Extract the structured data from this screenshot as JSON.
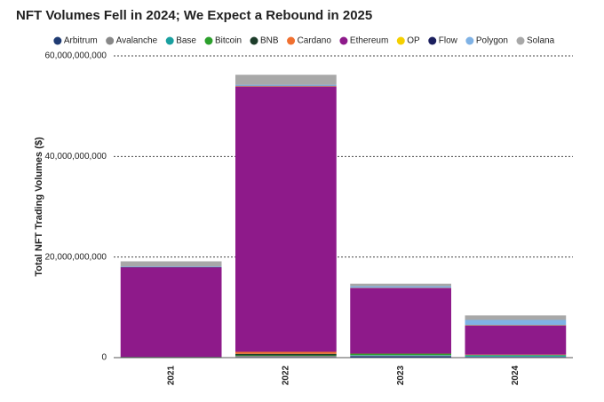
{
  "chart_data": {
    "type": "stacked-bar",
    "title": "NFT Volumes Fell in 2024; We Expect a Rebound in 2025",
    "y_label": "Total NFT Trading Volumes ($)",
    "categories": [
      "2021",
      "2022",
      "2023",
      "2024"
    ],
    "series": [
      {
        "name": "Arbitrum",
        "color": "#1f3b73",
        "values": [
          0,
          50000000.0,
          300000000.0,
          100000000.0
        ]
      },
      {
        "name": "Avalanche",
        "color": "#888888",
        "values": [
          50000000.0,
          300000000.0,
          100000000.0,
          100000000.0
        ]
      },
      {
        "name": "Base",
        "color": "#1aa0a0",
        "values": [
          0,
          0,
          100000000.0,
          200000000.0
        ]
      },
      {
        "name": "Bitcoin",
        "color": "#2ca02c",
        "values": [
          0,
          100000000.0,
          200000000.0,
          100000000.0
        ]
      },
      {
        "name": "BNB",
        "color": "#1d3d2b",
        "values": [
          100000000.0,
          300000000.0,
          100000000.0,
          50000000.0
        ]
      },
      {
        "name": "Cardano",
        "color": "#f07030",
        "values": [
          0,
          400000000.0,
          50000000.0,
          50000000.0
        ]
      },
      {
        "name": "Ethereum",
        "color": "#8e1a8a",
        "values": [
          17800000000.0,
          52800000000.0,
          13000000000.0,
          5800000000.0
        ]
      },
      {
        "name": "OP",
        "color": "#f5d000",
        "values": [
          0,
          50000000.0,
          50000000.0,
          50000000.0
        ]
      },
      {
        "name": "Flow",
        "color": "#1b1f5e",
        "values": [
          100000000.0,
          50000000.0,
          0,
          50000000.0
        ]
      },
      {
        "name": "Polygon",
        "color": "#7fb2e5",
        "values": [
          100000000.0,
          200000000.0,
          300000000.0,
          1000000000.0
        ]
      },
      {
        "name": "Solana",
        "color": "#a8a8a8",
        "values": [
          1000000000.0,
          2000000000.0,
          500000000.0,
          900000000.0
        ]
      }
    ],
    "ylim": [
      0,
      60000000000
    ],
    "yticks": [
      0,
      {
        "value": 20000000000,
        "label": "20,000,000,000"
      },
      {
        "value": 40000000000,
        "label": "40,000,000,000"
      },
      {
        "value": 60000000000,
        "label": "60,000,000,000"
      }
    ],
    "grid": true
  }
}
